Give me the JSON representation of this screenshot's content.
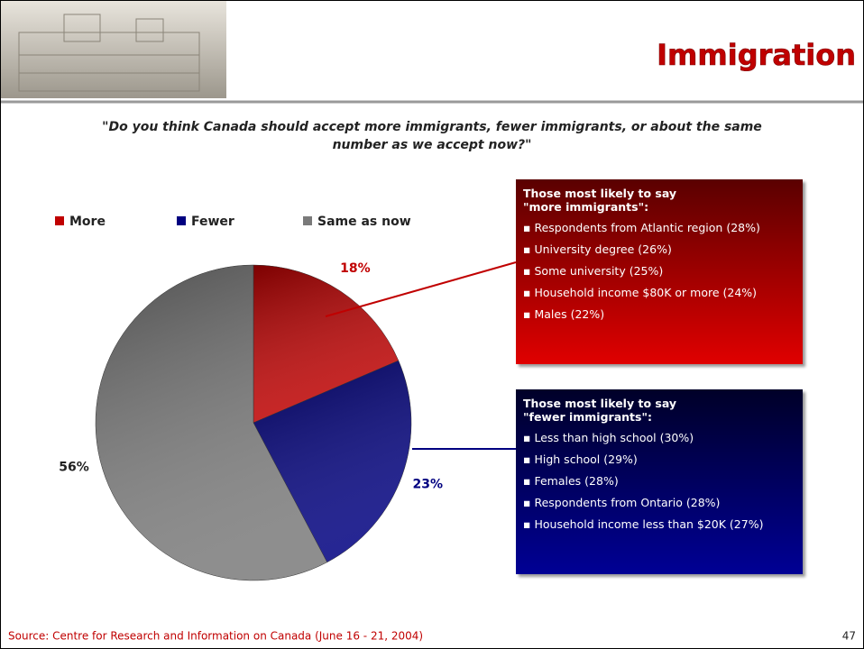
{
  "chart_data": {
    "type": "pie",
    "title": "Immigration",
    "subtitle": "\"Do you think Canada should accept more immigrants, fewer immigrants, or about the same number as we accept now?\"",
    "categories": [
      "More",
      "Fewer",
      "Same as now"
    ],
    "values": [
      18,
      23,
      56
    ],
    "value_labels": [
      "18%",
      "23%",
      "56%"
    ],
    "colors": [
      "#c00000",
      "#000080",
      "#7a7a7a"
    ]
  },
  "callouts": [
    {
      "title": [
        "Those most likely to say",
        "\"more immigrants\":"
      ],
      "items": [
        "Respondents from Atlantic region (28%)",
        "University degree (26%)",
        "Some university (25%)",
        "Household income $80K or more (24%)",
        "Males (22%)"
      ]
    },
    {
      "title": [
        "Those most likely to say",
        "\"fewer immigrants\":"
      ],
      "items": [
        "Less than high school (30%)",
        "High school (29%)",
        "Females (28%)",
        "Respondents from Ontario (28%)",
        "Household income less than $20K (27%)"
      ]
    }
  ],
  "source": "Source: Centre for Research and Information on Canada (June 16 - 21, 2004)",
  "page_number": 47
}
